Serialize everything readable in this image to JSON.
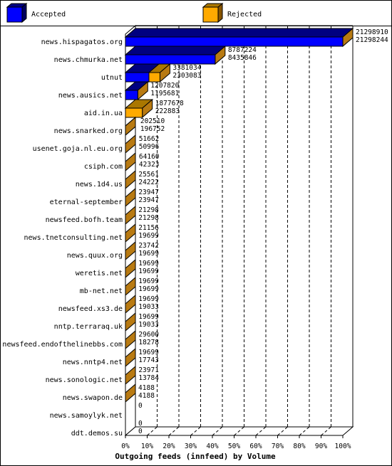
{
  "chart_data": {
    "type": "bar",
    "orientation": "horizontal",
    "stacked": false,
    "xlabel": "Outgoing feeds (innfeed) by Volume",
    "x_ticks": [
      "0%",
      "10%",
      "20%",
      "30%",
      "40%",
      "50%",
      "60%",
      "70%",
      "80%",
      "90%",
      "100%"
    ],
    "xlim": [
      0,
      100
    ],
    "grid": "vertical dashed",
    "max_value": 21298910,
    "legend": [
      {
        "name": "Accepted",
        "color": "#0000ff"
      },
      {
        "name": "Rejected",
        "color": "#ffaa00"
      }
    ],
    "rows": [
      {
        "name": "news.hispagatos.org",
        "a": "21298910",
        "b": "21298244",
        "acc": 21298910,
        "rej": 0
      },
      {
        "name": "news.chmurka.net",
        "a": "8787224",
        "b": "8435846",
        "acc": 8787224,
        "rej": 0
      },
      {
        "name": "utnut",
        "a": "3381034",
        "b": "2303083",
        "acc": 2303083,
        "rej": 1077951
      },
      {
        "name": "news.ausics.net",
        "a": "1207820",
        "b": "1195681",
        "acc": 1207820,
        "rej": 0
      },
      {
        "name": "aid.in.ua",
        "a": "1877678",
        "b": "222883",
        "acc": 0,
        "rej": 1654795
      },
      {
        "name": "news.snarked.org",
        "a": "202510",
        "b": "196752",
        "acc": 202510,
        "rej": 0
      },
      {
        "name": "usenet.goja.nl.eu.org",
        "a": "51662",
        "b": "50996",
        "acc": 51662,
        "rej": 0
      },
      {
        "name": "csiph.com",
        "a": "64160",
        "b": "42323",
        "acc": 64160,
        "rej": 0
      },
      {
        "name": "news.1d4.us",
        "a": "25561",
        "b": "24222",
        "acc": 25561,
        "rej": 0
      },
      {
        "name": "eternal-september",
        "a": "23947",
        "b": "23947",
        "acc": 23947,
        "rej": 0
      },
      {
        "name": "newsfeed.bofh.team",
        "a": "21298",
        "b": "21298",
        "acc": 21298,
        "rej": 0
      },
      {
        "name": "news.tnetconsulting.net",
        "a": "21156",
        "b": "19699",
        "acc": 21156,
        "rej": 0
      },
      {
        "name": "news.quux.org",
        "a": "23742",
        "b": "19699",
        "acc": 23742,
        "rej": 0
      },
      {
        "name": "weretis.net",
        "a": "19699",
        "b": "19699",
        "acc": 19699,
        "rej": 0
      },
      {
        "name": "mb-net.net",
        "a": "19699",
        "b": "19699",
        "acc": 19699,
        "rej": 0
      },
      {
        "name": "newsfeed.xs3.de",
        "a": "19699",
        "b": "19033",
        "acc": 19699,
        "rej": 0
      },
      {
        "name": "nntp.terraraq.uk",
        "a": "19699",
        "b": "19033",
        "acc": 19699,
        "rej": 0
      },
      {
        "name": "newsfeed.endofthelinebbs.com",
        "a": "29600",
        "b": "18278",
        "acc": 29600,
        "rej": 0
      },
      {
        "name": "news.nntp4.net",
        "a": "19699",
        "b": "17743",
        "acc": 19699,
        "rej": 0
      },
      {
        "name": "news.sonologic.net",
        "a": "23971",
        "b": "13784",
        "acc": 23971,
        "rej": 0
      },
      {
        "name": "news.swapon.de",
        "a": "4188",
        "b": "4188",
        "acc": 4188,
        "rej": 0
      },
      {
        "name": "news.samoylyk.net",
        "a": "0",
        "b": "",
        "acc": 0,
        "rej": 0
      },
      {
        "name": "ddt.demos.su",
        "a": "0",
        "b": "0",
        "acc": 0,
        "rej": 0
      }
    ]
  }
}
